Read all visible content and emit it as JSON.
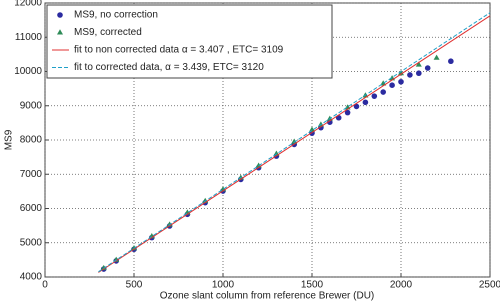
{
  "chart_data": {
    "type": "scatter",
    "xlabel": "Ozone slant column from reference Brewer (DU)",
    "ylabel": "MS9",
    "xlim": [
      0,
      2500
    ],
    "xticks": [
      0,
      500,
      1000,
      1500,
      2000,
      2500
    ],
    "ylim": [
      4000,
      12000
    ],
    "yticks": [
      4000,
      5000,
      6000,
      7000,
      8000,
      9000,
      10000,
      11000,
      12000
    ],
    "grid": true,
    "legend": "upper left",
    "series": [
      {
        "name": "MS9, no correction",
        "color": "#2b2ba0",
        "mode": "markers",
        "marker": "circle",
        "x": [
          330,
          400,
          500,
          600,
          700,
          800,
          900,
          1000,
          1100,
          1200,
          1300,
          1400,
          1500,
          1550,
          1600,
          1650,
          1700,
          1750,
          1800,
          1850,
          1900,
          1950,
          2000,
          2050,
          2100,
          2150,
          2280
        ],
        "values": [
          4233,
          4470,
          4810,
          5150,
          5490,
          5830,
          6170,
          6510,
          6850,
          7190,
          7530,
          7870,
          8200,
          8360,
          8520,
          8650,
          8800,
          8980,
          9100,
          9280,
          9400,
          9600,
          9700,
          9900,
          9950,
          10100,
          10300
        ]
      },
      {
        "name": "MS9, corrected",
        "color": "#2e8b57",
        "mode": "markers",
        "marker": "triangle",
        "x": [
          330,
          400,
          500,
          600,
          700,
          800,
          900,
          1000,
          1100,
          1200,
          1300,
          1400,
          1500,
          1550,
          1600,
          1700,
          1800,
          1900,
          1950,
          2000,
          2100,
          2200
        ],
        "values": [
          4260,
          4500,
          4840,
          5190,
          5530,
          5880,
          6220,
          6560,
          6900,
          7250,
          7600,
          7950,
          8300,
          8450,
          8620,
          8950,
          9300,
          9650,
          9800,
          9950,
          10200,
          10400
        ]
      },
      {
        "name": "fit to non corrected data α = 3.407 , ETC= 3109",
        "color": "#e03030",
        "mode": "line",
        "dash": false,
        "x": [
          300,
          2500
        ],
        "values": [
          4131.1,
          11626.5
        ]
      },
      {
        "name": "fit to corrected data, α = 3.439, ETC= 3120",
        "color": "#1fa0c8",
        "mode": "line",
        "dash": true,
        "x": [
          300,
          2500
        ],
        "values": [
          4151.7,
          11717.5
        ]
      }
    ]
  }
}
